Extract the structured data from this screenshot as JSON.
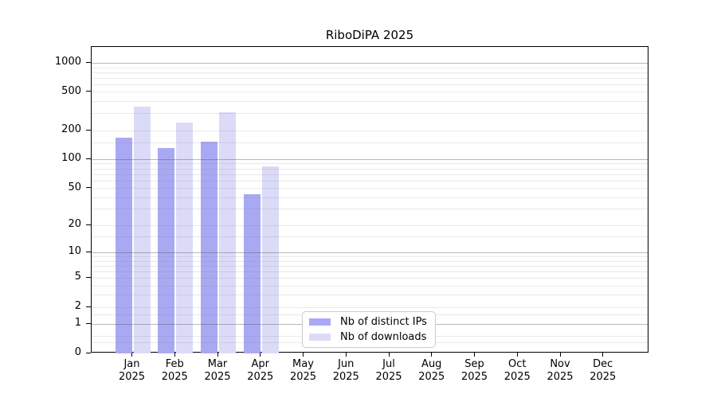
{
  "chart_data": {
    "type": "bar",
    "title": "RiboDiPA 2025",
    "categories": [
      "Jan",
      "Feb",
      "Mar",
      "Apr",
      "May",
      "Jun",
      "Jul",
      "Aug",
      "Sep",
      "Oct",
      "Nov",
      "Dec"
    ],
    "year_label": "2025",
    "series": [
      {
        "name": "Nb of distinct IPs",
        "color": "#a9a9f3",
        "values": [
          170,
          131,
          155,
          43,
          0,
          0,
          0,
          0,
          0,
          0,
          0,
          0
        ]
      },
      {
        "name": "Nb of downloads",
        "color": "#dbdbf8",
        "values": [
          354,
          244,
          308,
          85,
          0,
          0,
          0,
          0,
          0,
          0,
          0,
          0
        ]
      }
    ],
    "yscale": "log10(1+x)",
    "ylim": [
      0,
      1475
    ],
    "ytick_labels": [
      "1000",
      "500",
      "200",
      "100",
      "50",
      "20",
      "10",
      "5",
      "2",
      "1",
      "0"
    ],
    "ytick_values": [
      1000,
      500,
      200,
      100,
      50,
      20,
      10,
      5,
      2,
      1,
      0
    ],
    "grid": "horizontal",
    "grid_major_values": [
      1,
      10,
      100,
      1000
    ],
    "grid_minor_values": [
      0.3,
      0.5,
      1.5,
      2,
      3,
      4,
      5,
      6,
      7,
      8,
      9,
      15,
      20,
      30,
      40,
      50,
      60,
      70,
      80,
      90,
      150,
      200,
      300,
      400,
      500,
      600,
      700,
      800,
      900
    ],
    "legend_position": "bottom-center-inside"
  }
}
